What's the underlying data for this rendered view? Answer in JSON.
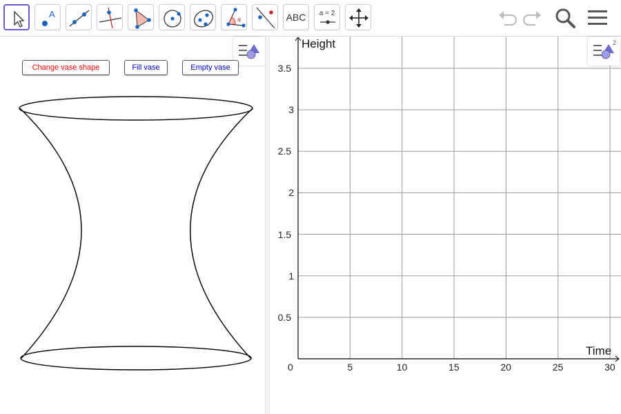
{
  "toolbar": {
    "tools": [
      {
        "name": "move-tool",
        "label": ""
      },
      {
        "name": "point-tool",
        "label": ""
      },
      {
        "name": "line-tool",
        "label": ""
      },
      {
        "name": "perpendicular-line-tool",
        "label": ""
      },
      {
        "name": "polygon-tool",
        "label": ""
      },
      {
        "name": "circle-center-point-tool",
        "label": ""
      },
      {
        "name": "ellipse-tool",
        "label": ""
      },
      {
        "name": "angle-tool",
        "label": ""
      },
      {
        "name": "reflect-tool",
        "label": ""
      },
      {
        "name": "text-tool",
        "label": "ABC"
      },
      {
        "name": "slider-tool",
        "label": "a = 2"
      },
      {
        "name": "move-graphics-view-tool",
        "label": ""
      }
    ],
    "selected_tool": "move-tool",
    "icons": [
      "undo-icon",
      "redo-icon",
      "search-icon",
      "menu-icon"
    ]
  },
  "left_panel": {
    "buttons": {
      "change_shape": "Change vase shape",
      "fill": "Fill vase",
      "empty": "Empty vase"
    },
    "button_colors": {
      "change_shape": "#ff0000",
      "fill": "#0000cc",
      "empty": "#0000cc"
    }
  },
  "graph": {
    "x_axis_label": "Time",
    "y_axis_label": "Height",
    "origin_label": "0",
    "x_ticks": [
      "5",
      "10",
      "15",
      "20",
      "25",
      "30"
    ],
    "y_ticks": [
      "0.5",
      "1",
      "1.5",
      "2",
      "2.5",
      "3",
      "3.5"
    ],
    "style_bar_badge": "2"
  },
  "chart_data": {
    "type": "line",
    "title": "",
    "xlabel": "Time",
    "ylabel": "Height",
    "xlim": [
      0,
      30
    ],
    "ylim": [
      0,
      3.85
    ],
    "x_ticks": [
      5,
      10,
      15,
      20,
      25,
      30
    ],
    "y_ticks": [
      0.5,
      1,
      1.5,
      2,
      2.5,
      3,
      3.5
    ],
    "grid": true,
    "series": []
  }
}
